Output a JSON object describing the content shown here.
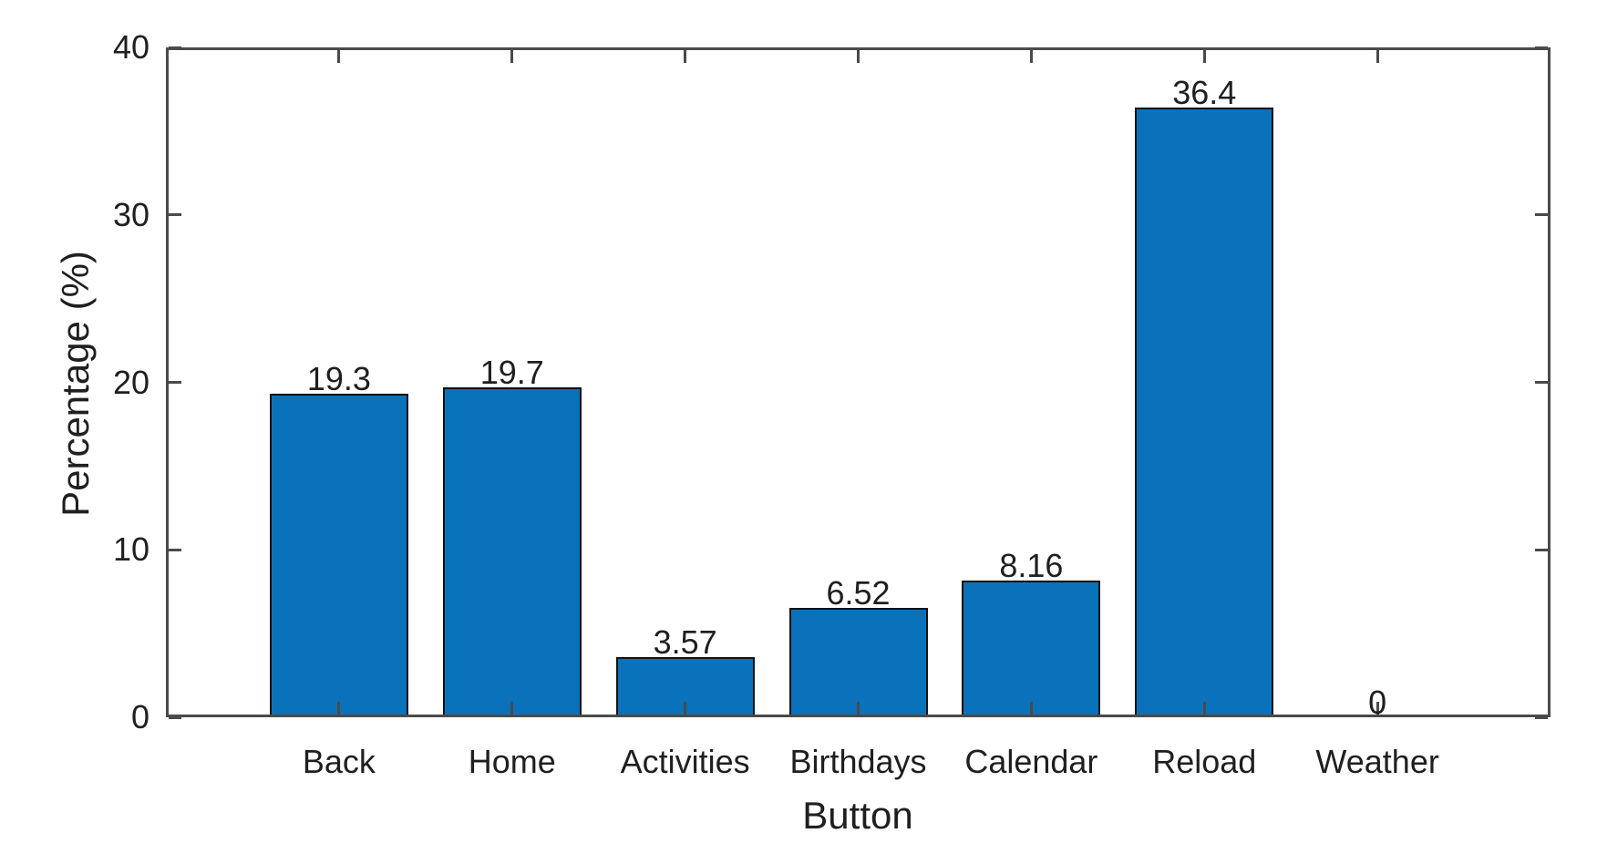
{
  "chart_data": {
    "type": "bar",
    "title": "",
    "categories": [
      "Back",
      "Home",
      "Activities",
      "Birthdays",
      "Calendar",
      "Reload",
      "Weather"
    ],
    "values": [
      19.3,
      19.7,
      3.57,
      6.52,
      8.16,
      36.4,
      0
    ],
    "value_labels": [
      "19.3",
      "19.7",
      "3.57",
      "6.52",
      "8.16",
      "36.4",
      "0"
    ],
    "xlabel": "Button",
    "ylabel": "Percentage (%)",
    "ylim": [
      0,
      40
    ],
    "yticks": [
      0,
      10,
      20,
      30,
      40
    ],
    "ytick_labels": [
      "0",
      "10",
      "20",
      "30",
      "40"
    ],
    "grid": false,
    "legend_position": "none",
    "bar_color": "#0a72ba",
    "bar_edge_color": "#111111",
    "axis_color": "#4a4a4a",
    "text_color": "#1f1f1f",
    "background_color": "#ffffff"
  }
}
